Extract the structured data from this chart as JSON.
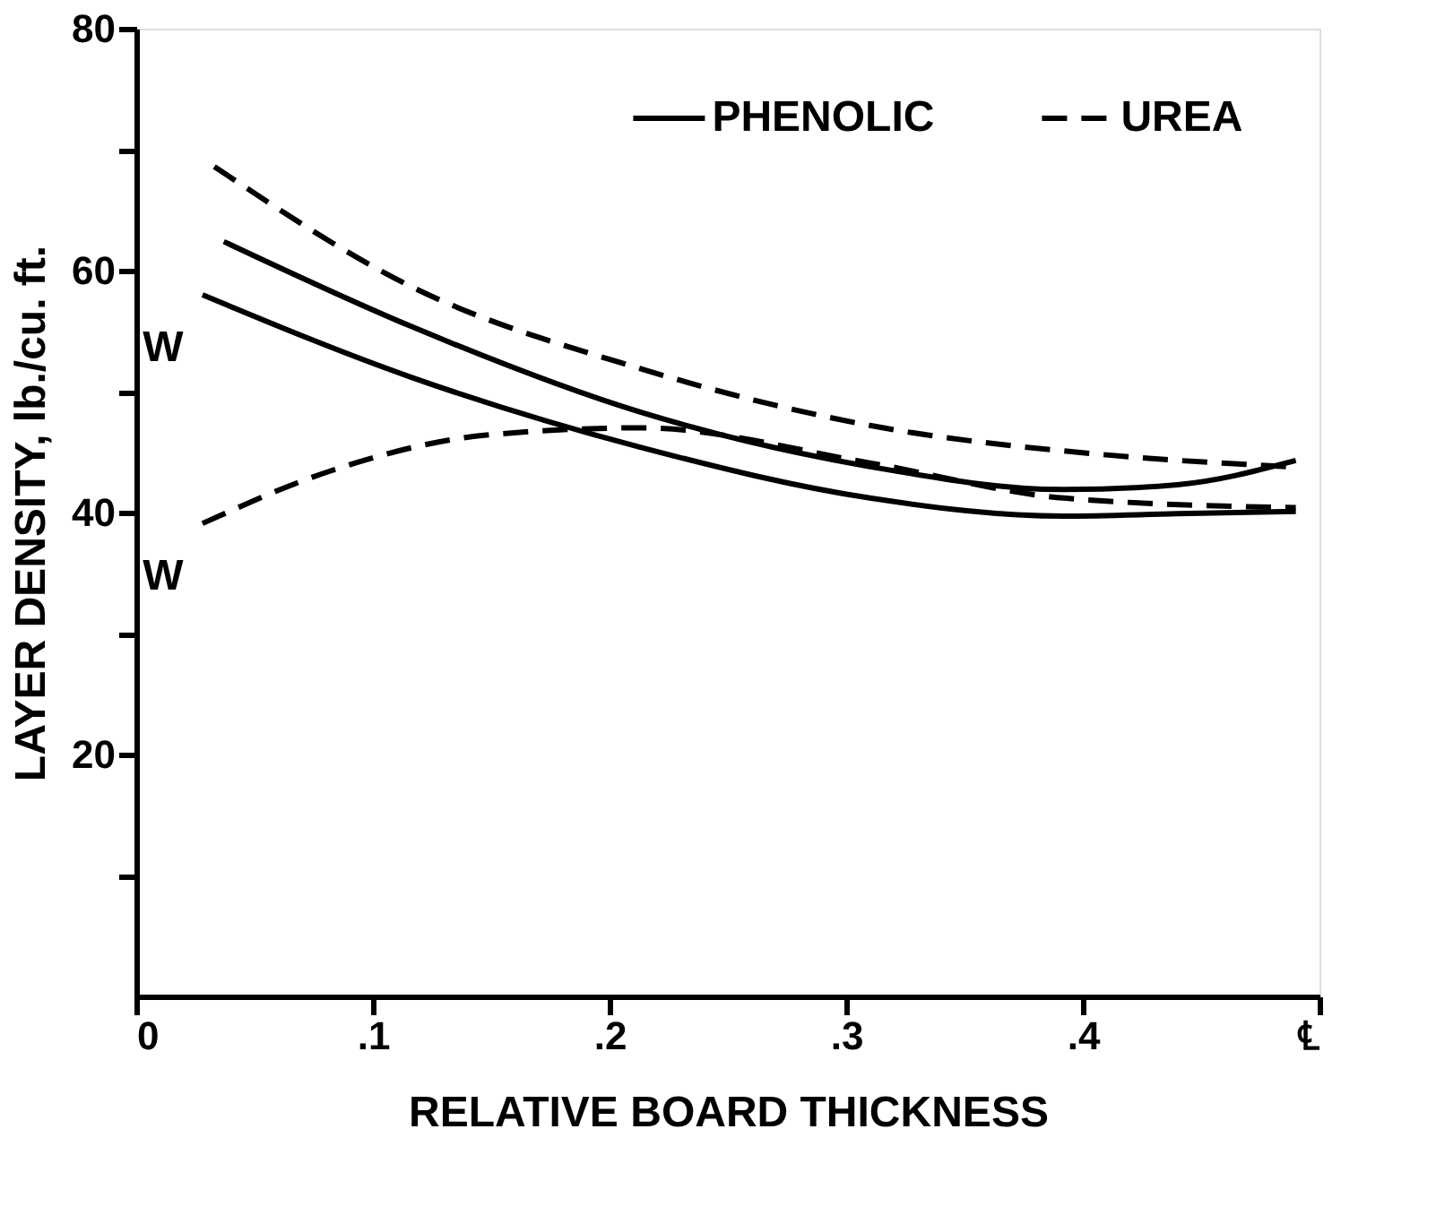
{
  "chart_data": {
    "type": "line",
    "xlabel": "RELATIVE BOARD THICKNESS",
    "ylabel": "LAYER DENSITY, lb./cu. ft.",
    "xlim": [
      0,
      0.5
    ],
    "ylim": [
      0,
      80
    ],
    "xticks": [
      0,
      {
        "value": 0.1,
        "label": ".1"
      },
      {
        "value": 0.2,
        "label": ".2"
      },
      {
        "value": 0.3,
        "label": ".3"
      },
      {
        "value": 0.4,
        "label": ".4"
      },
      {
        "value": 0.5,
        "label": "℄"
      }
    ],
    "yticks": [
      {
        "value": 10,
        "label": null
      },
      20,
      {
        "value": 30,
        "label": null
      },
      40,
      {
        "value": 50,
        "label": null
      },
      60,
      {
        "value": 70,
        "label": null
      },
      80
    ],
    "legend": "top right",
    "grid": false,
    "marker": "none",
    "series": [
      {
        "name": "PHENOLIC",
        "color": "#000000",
        "line_style": "solid",
        "x": [
          0.037,
          0.116,
          0.213,
          0.31,
          0.392,
          0.44,
          0.49
        ],
        "values": [
          62.4,
          55.4,
          48.3,
          43.8,
          41.9,
          42.3,
          44.3
        ]
      },
      {
        "color": "#000000",
        "line_style": "solid",
        "x": [
          0.028,
          0.116,
          0.213,
          0.31,
          0.392,
          0.44,
          0.49
        ],
        "values": [
          58.0,
          51.2,
          45.4,
          41.2,
          39.7,
          39.9,
          40.1
        ]
      },
      {
        "name": "UREA",
        "color": "#000000",
        "line_style": "dashed",
        "x": [
          0.033,
          0.116,
          0.213,
          0.31,
          0.408,
          0.486
        ],
        "values": [
          68.6,
          58.7,
          51.9,
          47.2,
          44.8,
          43.8
        ]
      },
      {
        "color": "#000000",
        "line_style": "dashed",
        "x": [
          0.028,
          0.083,
          0.148,
          0.213,
          0.31,
          0.392,
          0.49
        ],
        "values": [
          39.1,
          43.5,
          46.4,
          47.0,
          44.1,
          41.2,
          40.4
        ]
      }
    ],
    "annotations": [
      "W",
      "W"
    ]
  }
}
